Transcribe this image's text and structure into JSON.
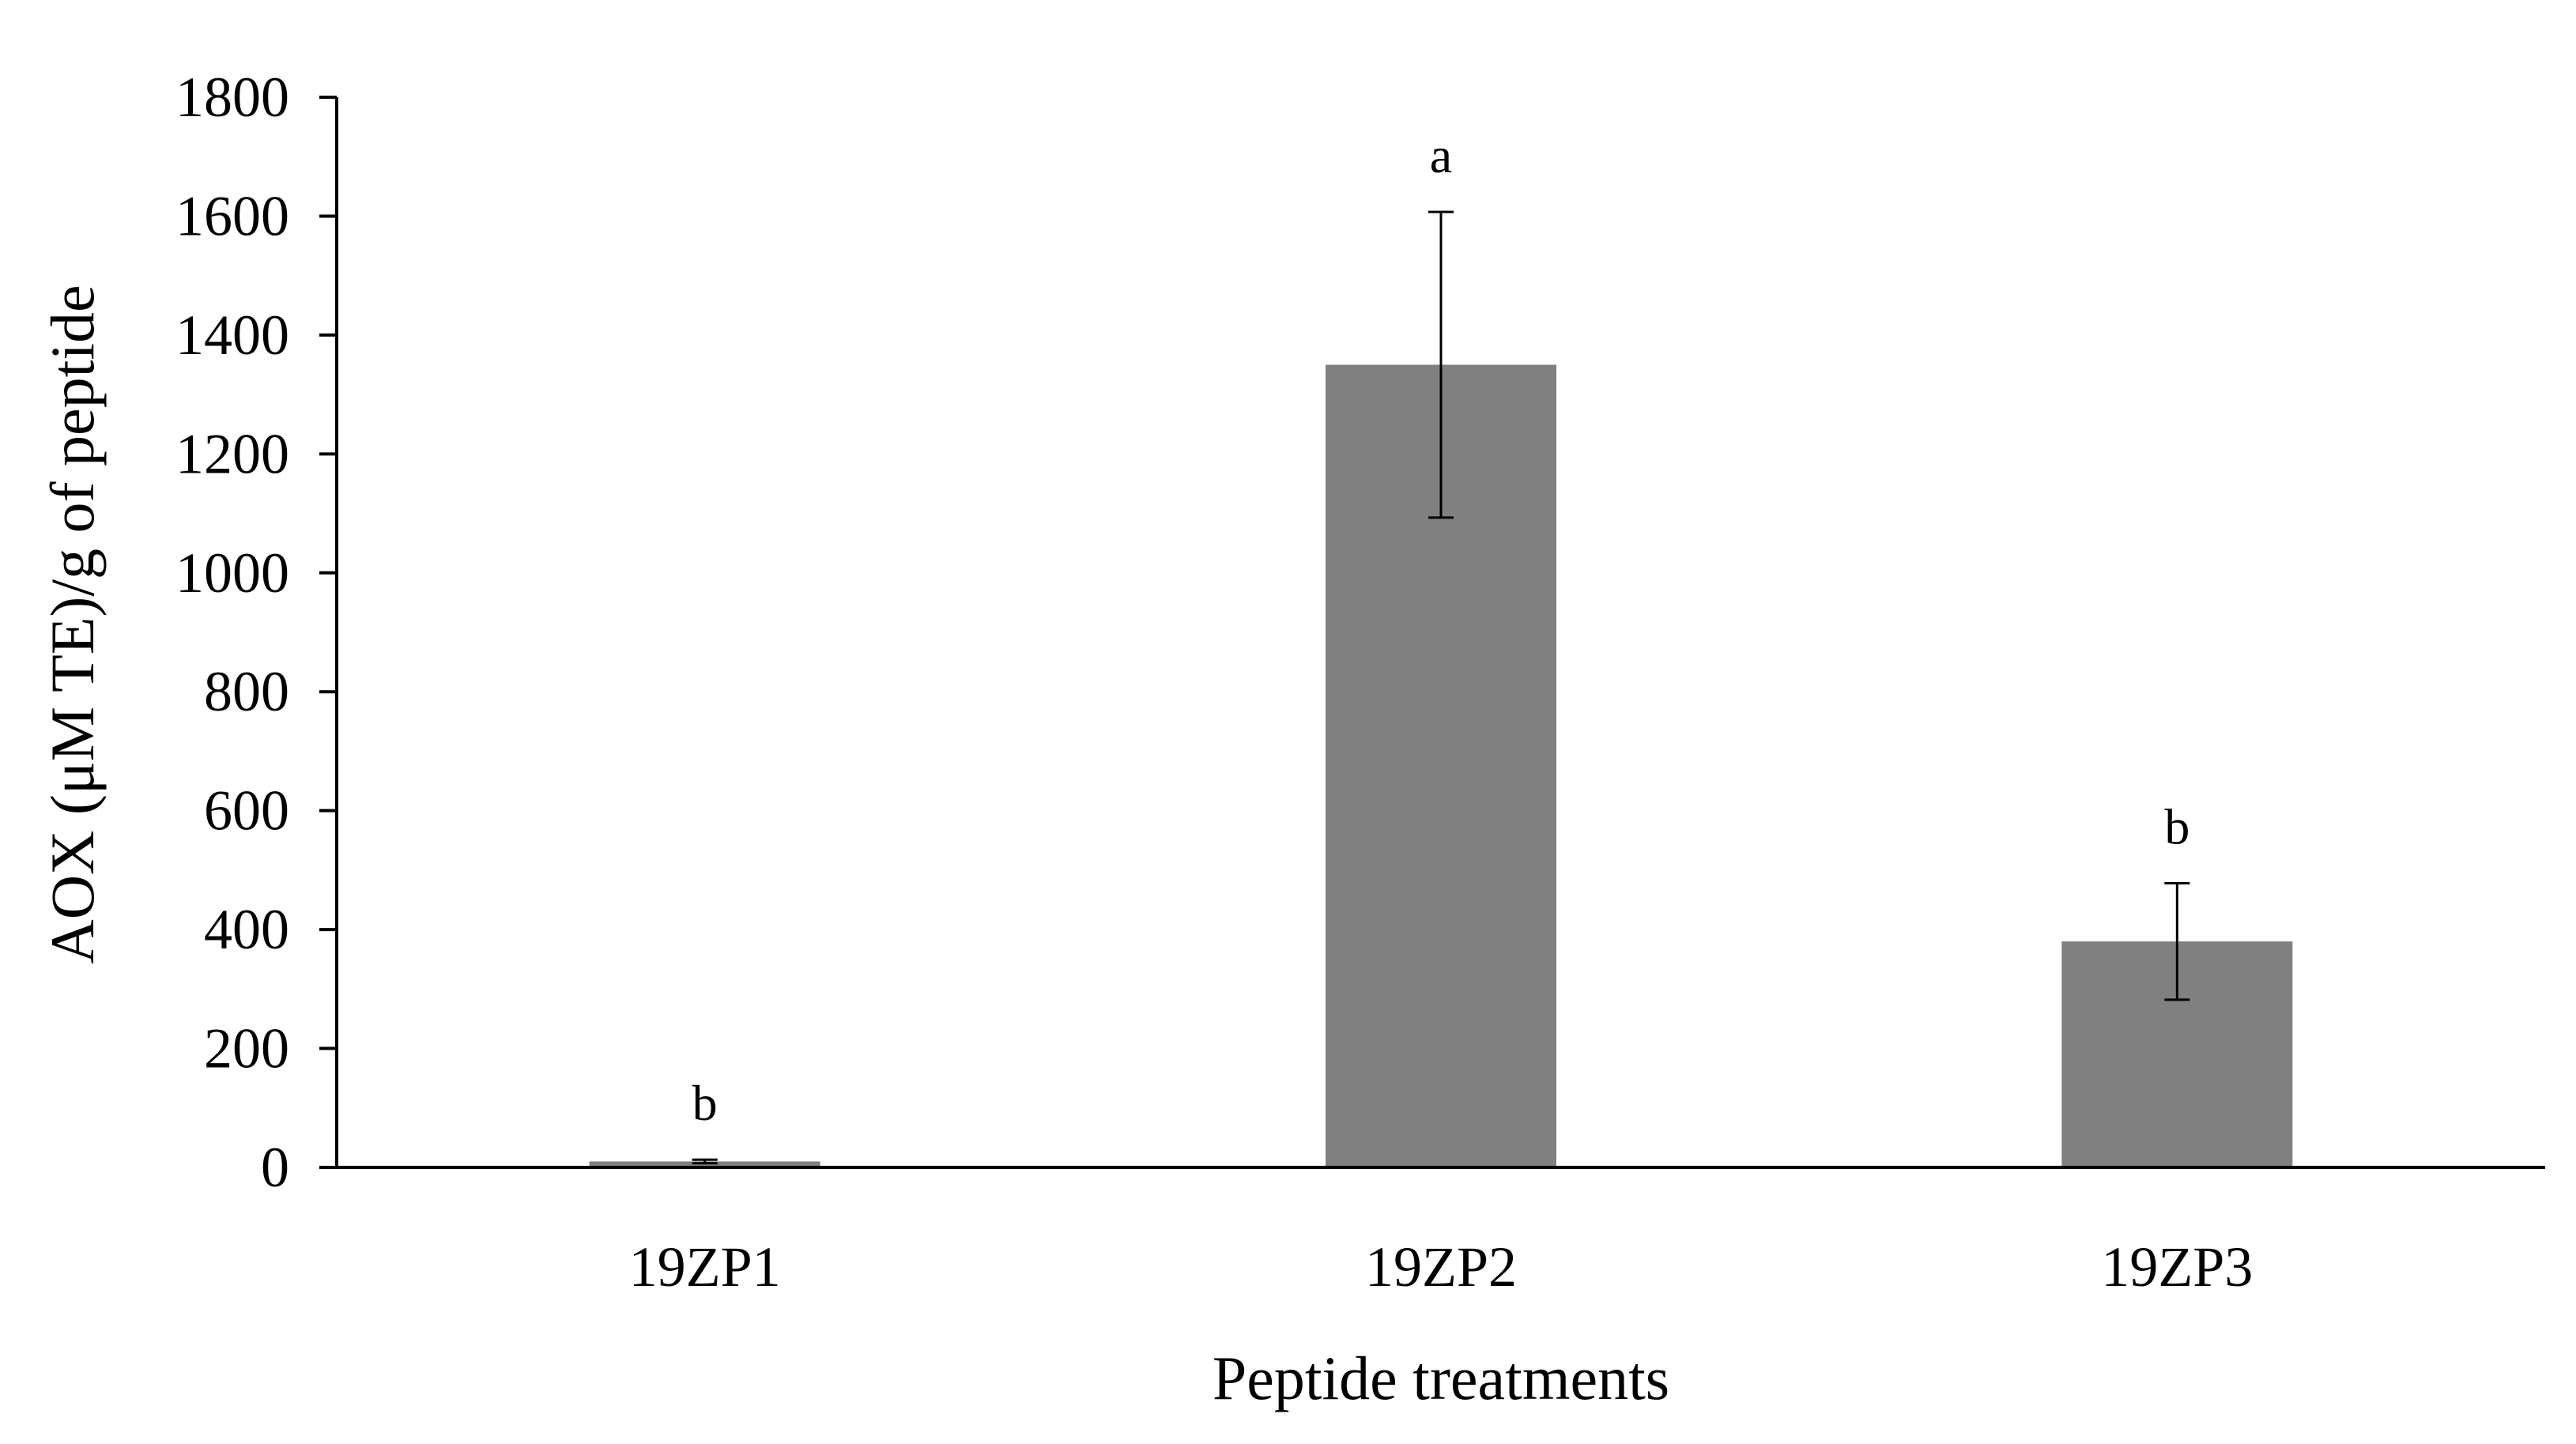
{
  "chart_data": {
    "type": "bar",
    "title": "",
    "xlabel": "Peptide treatments",
    "ylabel": "AOX (μM TE)/g of peptide",
    "categories": [
      "19ZP1",
      "19ZP2",
      "19ZP3"
    ],
    "values": [
      10,
      1350,
      380
    ],
    "errors": [
      3,
      257,
      98
    ],
    "significance_letters": [
      "b",
      "a",
      "b"
    ],
    "ylim": [
      0,
      1800
    ],
    "yticks": [
      0,
      200,
      400,
      600,
      800,
      1000,
      1200,
      1400,
      1600,
      1800
    ],
    "grid": false,
    "legend": "none",
    "bar_color": "#808080"
  }
}
